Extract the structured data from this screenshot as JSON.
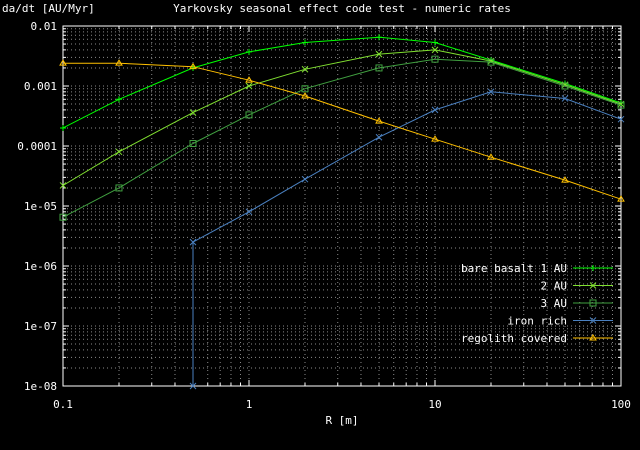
{
  "chart_data": {
    "type": "line",
    "title": "Yarkovsky seasonal effect code test - numeric rates",
    "ylabel": "da/dt [AU/Myr]",
    "xlabel": "R [m]",
    "x_scale": "log",
    "y_scale": "log",
    "xlim": [
      0.1,
      100
    ],
    "ylim": [
      1e-08,
      0.01
    ],
    "grid": true,
    "legend_position": "right",
    "x_ticks": [
      {
        "value": 0.1,
        "label": "0.1"
      },
      {
        "value": 1,
        "label": "1"
      },
      {
        "value": 10,
        "label": "10"
      },
      {
        "value": 100,
        "label": "100"
      }
    ],
    "y_ticks": [
      {
        "value": 0.01,
        "label": "0.01"
      },
      {
        "value": 0.001,
        "label": "0.001"
      },
      {
        "value": 0.0001,
        "label": "0.0001"
      },
      {
        "value": 1e-05,
        "label": "1e-05"
      },
      {
        "value": 1e-06,
        "label": "1e-06"
      },
      {
        "value": 1e-07,
        "label": "1e-07"
      },
      {
        "value": 1e-08,
        "label": "1e-08"
      }
    ],
    "series": [
      {
        "name": "bare basalt 1 AU",
        "color": "#00ff00",
        "marker": "plus",
        "x": [
          0.1,
          0.2,
          0.5,
          1,
          2,
          5,
          10,
          20,
          50,
          100
        ],
        "y": [
          0.0002,
          0.0006,
          0.002,
          0.0037,
          0.0053,
          0.0065,
          0.0053,
          0.0027,
          0.0011,
          0.00052
        ]
      },
      {
        "name": "2 AU",
        "color": "#80e030",
        "marker": "x",
        "x": [
          0.1,
          0.2,
          0.5,
          1,
          2,
          5,
          10,
          20,
          50,
          100
        ],
        "y": [
          2.2e-05,
          8e-05,
          0.00036,
          0.001,
          0.0019,
          0.0034,
          0.004,
          0.0026,
          0.00105,
          0.0005
        ]
      },
      {
        "name": "3 AU",
        "color": "#40a040",
        "marker": "square",
        "x": [
          0.1,
          0.2,
          0.5,
          1,
          2,
          5,
          10,
          20,
          50,
          100
        ],
        "y": [
          6.5e-06,
          2e-05,
          0.00011,
          0.00033,
          0.0009,
          0.002,
          0.0028,
          0.0025,
          0.001,
          0.00048
        ]
      },
      {
        "name": "iron rich",
        "color": "#4a80c0",
        "marker": "x",
        "x": [
          0.5,
          0.5,
          1,
          2,
          5,
          10,
          20,
          50,
          100
        ],
        "y": [
          1e-08,
          2.5e-06,
          8e-06,
          2.8e-05,
          0.00014,
          0.0004,
          0.0008,
          0.00062,
          0.00028
        ]
      },
      {
        "name": "regolith covered",
        "color": "#ffc000",
        "marker": "triangle",
        "x": [
          0.1,
          0.2,
          0.5,
          1,
          2,
          5,
          10,
          20,
          50,
          100
        ],
        "y": [
          0.0024,
          0.0024,
          0.0021,
          0.00125,
          0.00068,
          0.00026,
          0.00013,
          6.5e-05,
          2.7e-05,
          1.3e-05
        ]
      }
    ]
  }
}
